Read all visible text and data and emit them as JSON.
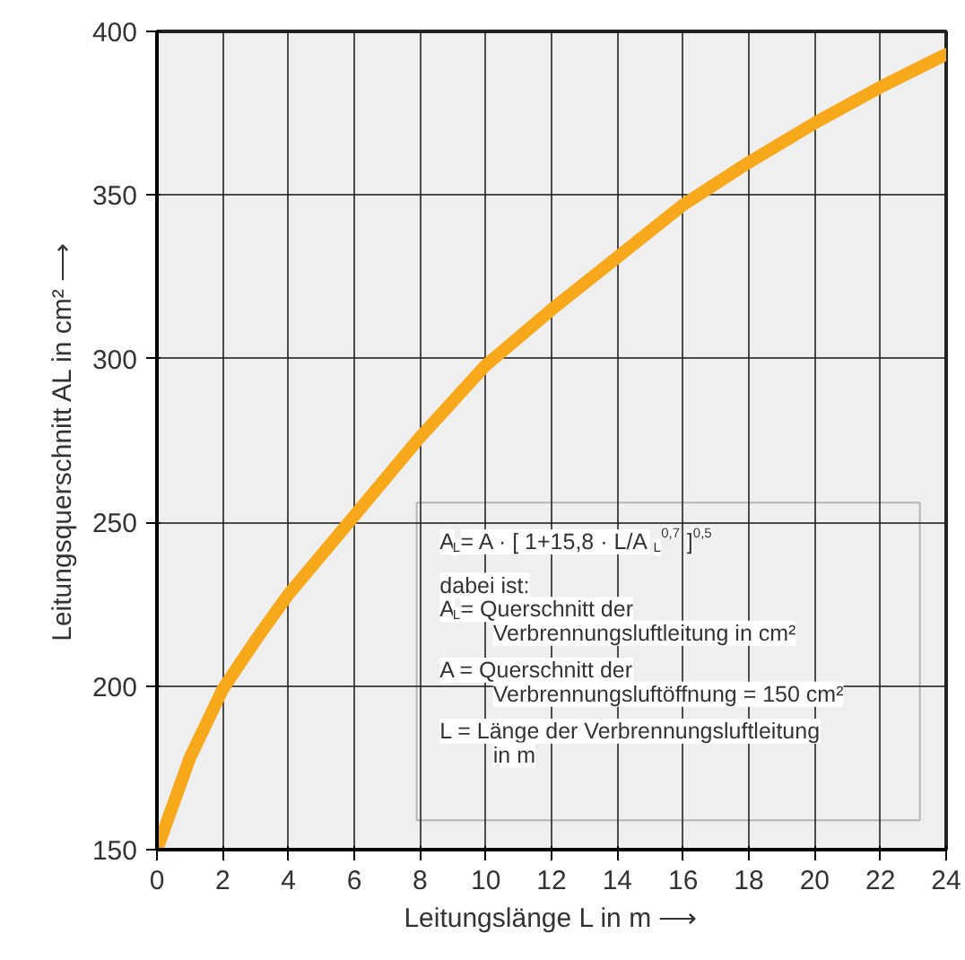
{
  "chart_data": {
    "type": "line",
    "xlabel": "Leitungslänge L in m ⟶",
    "ylabel": "Leitungsquerschnitt AL in cm² ⟶",
    "x": [
      0,
      1,
      2,
      3,
      4,
      6,
      8,
      10,
      12,
      14,
      16,
      18,
      20,
      22,
      24
    ],
    "series": [
      {
        "color": "#f7a81b",
        "values": [
          150,
          178,
          199,
          214,
          228,
          252,
          276,
          298,
          315,
          331,
          347,
          360,
          372,
          383,
          393
        ]
      }
    ],
    "xlim": [
      0,
      24
    ],
    "ylim": [
      150,
      400
    ],
    "xticks": [
      0,
      2,
      4,
      6,
      8,
      10,
      12,
      14,
      16,
      18,
      20,
      22,
      24
    ],
    "yticks": [
      150,
      200,
      250,
      300,
      350,
      400
    ],
    "grid": true,
    "annotations": [
      "A$_{L}$= A · [ 1+15,8 · L/A$_{L}$$^{0,7}$ ]$^{0,5}$",
      "dabei ist:\nA$_{L}$= Querschnitt der\n      Verbrennungsluftleitung in cm²",
      "A = Querschnitt der\n      Verbrennungsluftöffnung = 150 cm²",
      "L = Länge der Verbrennungsluftleitung\n      in m"
    ]
  }
}
